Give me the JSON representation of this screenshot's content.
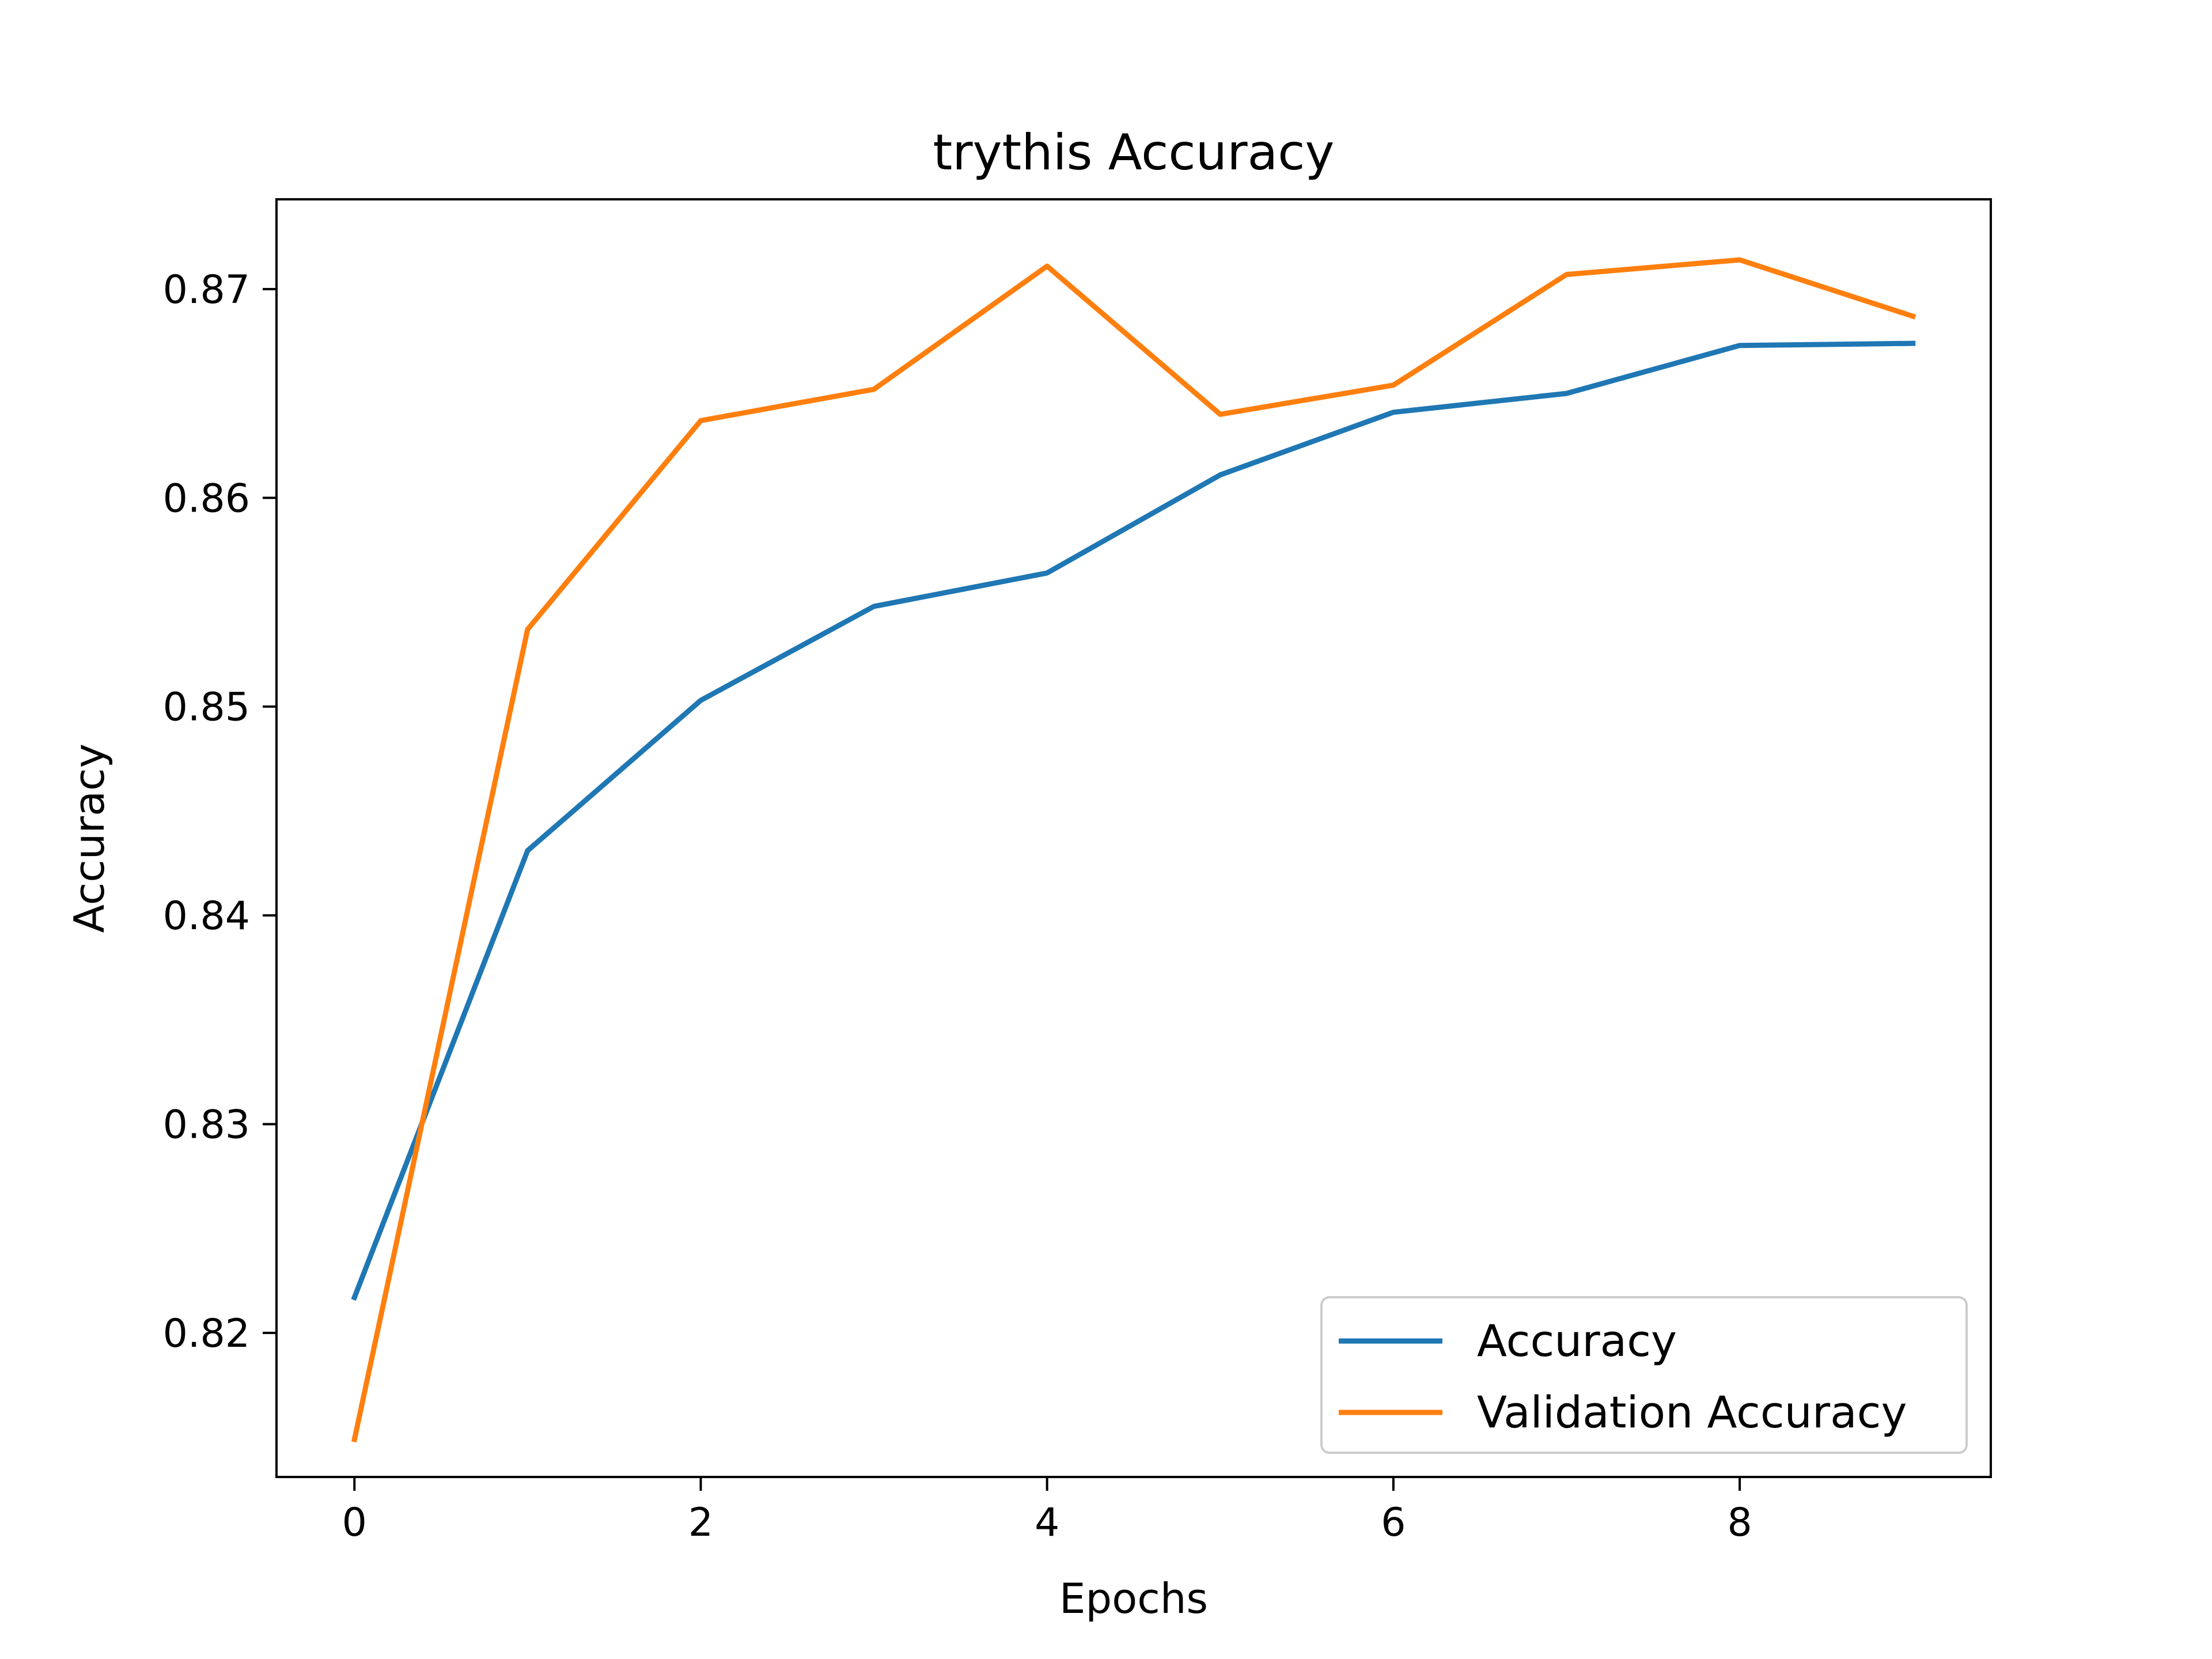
{
  "chart_data": {
    "type": "line",
    "title": "trythis Accuracy",
    "xlabel": "Epochs",
    "ylabel": "Accuracy",
    "x": [
      0,
      1,
      2,
      3,
      4,
      5,
      6,
      7,
      8,
      9
    ],
    "xlim": [
      -0.45,
      9.45
    ],
    "ylim": [
      0.8131,
      0.8743
    ],
    "xticks": [
      0,
      2,
      4,
      6,
      8
    ],
    "xtick_labels": [
      "0",
      "2",
      "4",
      "6",
      "8"
    ],
    "yticks": [
      0.82,
      0.83,
      0.84,
      0.85,
      0.86,
      0.87
    ],
    "ytick_labels": [
      "0.82",
      "0.83",
      "0.84",
      "0.85",
      "0.86",
      "0.87"
    ],
    "grid": false,
    "legend_position": "lower-right",
    "series": [
      {
        "name": "Accuracy",
        "color": "#1f77b4",
        "values": [
          0.8217,
          0.8431,
          0.8503,
          0.8548,
          0.8564,
          0.8611,
          0.8641,
          0.865,
          0.8673,
          0.8674
        ]
      },
      {
        "name": "Validation Accuracy",
        "color": "#ff7f0e",
        "values": [
          0.8149,
          0.8537,
          0.8637,
          0.8652,
          0.8711,
          0.864,
          0.8654,
          0.8707,
          0.8714,
          0.8687
        ]
      }
    ]
  }
}
